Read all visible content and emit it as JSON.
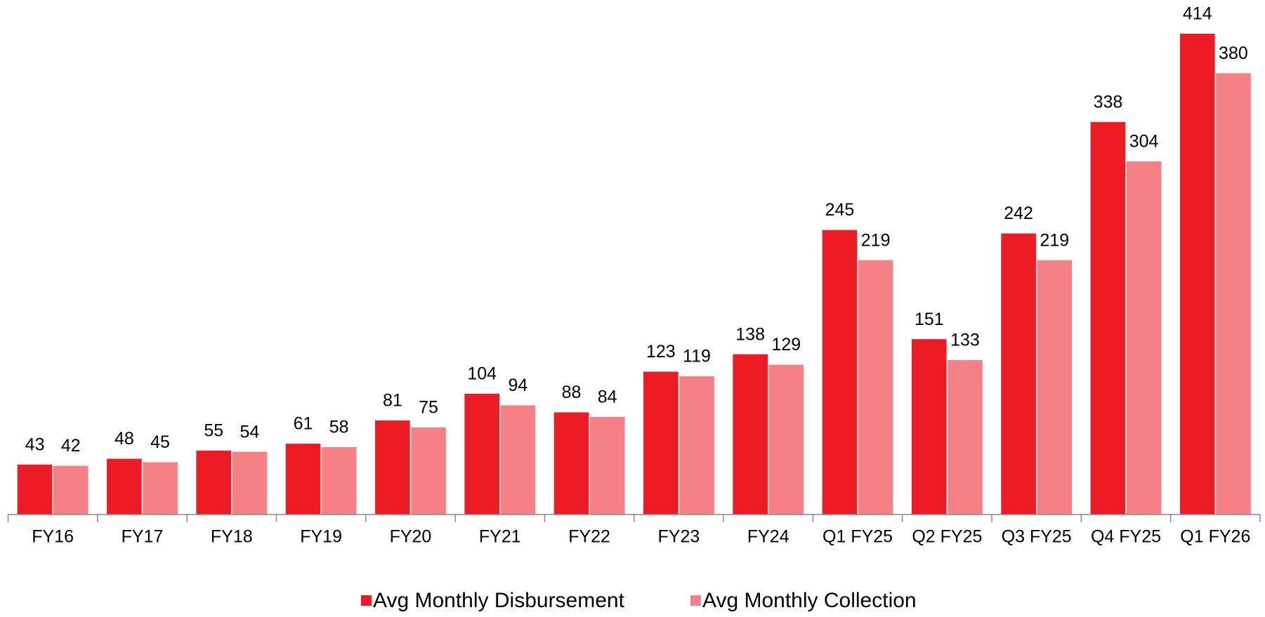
{
  "chart_data": {
    "type": "bar",
    "categories": [
      "FY16",
      "FY17",
      "FY18",
      "FY19",
      "FY20",
      "FY21",
      "FY22",
      "FY23",
      "FY24",
      "Q1 FY25",
      "Q2 FY25",
      "Q3 FY25",
      "Q4 FY25",
      "Q1 FY26"
    ],
    "series": [
      {
        "name": "Avg Monthly Disbursement",
        "color": "#ed1c24",
        "values": [
          43,
          48,
          55,
          61,
          81,
          104,
          88,
          123,
          138,
          245,
          151,
          242,
          338,
          414
        ]
      },
      {
        "name": "Avg Monthly Collection",
        "color": "#f58187",
        "values": [
          42,
          45,
          54,
          58,
          75,
          94,
          84,
          119,
          129,
          219,
          133,
          219,
          304,
          380
        ]
      }
    ],
    "legend": "bottom"
  }
}
